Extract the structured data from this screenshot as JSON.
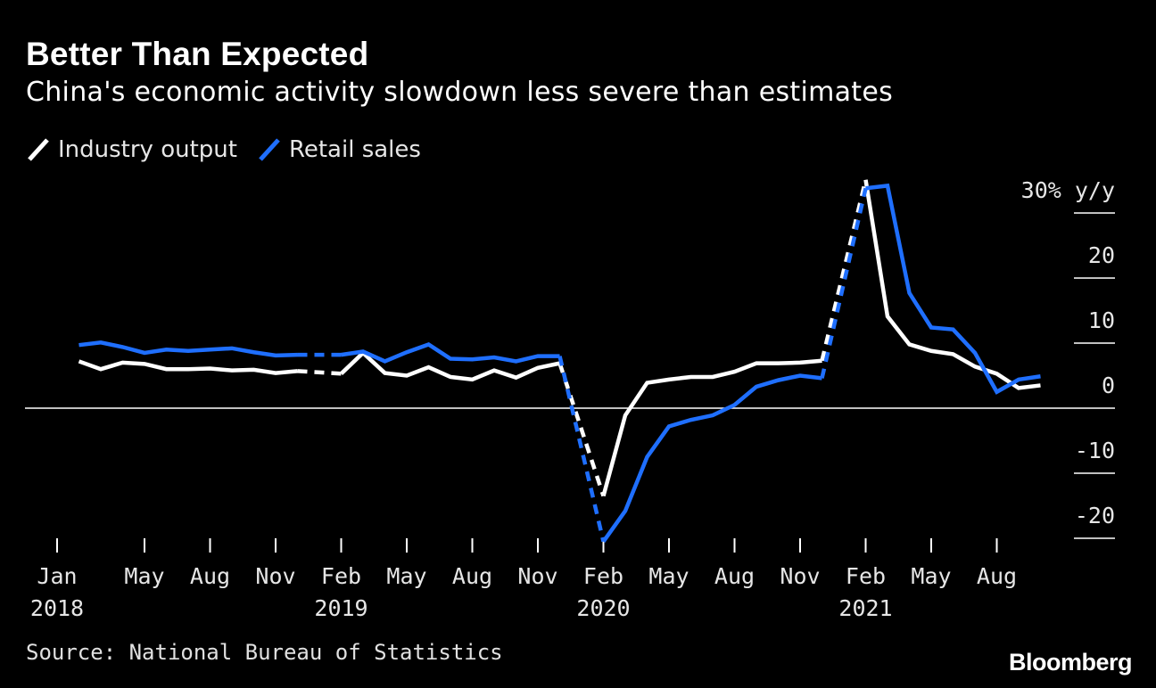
{
  "header": {
    "title": "Better Than Expected",
    "subtitle": "China's economic activity slowdown less severe than estimates"
  },
  "footer": {
    "source": "Source: National Bureau of Statistics",
    "brand": "Bloomberg"
  },
  "colors": {
    "background": "#000000",
    "industry": "#ffffff",
    "retail": "#1f6fff",
    "axis": "#ffffff"
  },
  "chart_data": {
    "type": "line",
    "title": "Better Than Expected",
    "subtitle": "China's economic activity slowdown less severe than estimates",
    "ylabel": "30% y/y",
    "ylim": [
      -20,
      30
    ],
    "y_ticks": [
      {
        "value": 30,
        "label": "30% y/y"
      },
      {
        "value": 20,
        "label": "20"
      },
      {
        "value": 10,
        "label": "10"
      },
      {
        "value": 0,
        "label": "0"
      },
      {
        "value": -10,
        "label": "-10"
      },
      {
        "value": -20,
        "label": "-20"
      }
    ],
    "x_range": [
      "2018-01",
      "2021-11"
    ],
    "x_ticks": [
      {
        "date": "2018-01",
        "label": "Jan",
        "year": "2018"
      },
      {
        "date": "2018-05",
        "label": "May",
        "year": ""
      },
      {
        "date": "2018-08",
        "label": "Aug",
        "year": ""
      },
      {
        "date": "2018-11",
        "label": "Nov",
        "year": ""
      },
      {
        "date": "2019-02",
        "label": "Feb",
        "year": "2019"
      },
      {
        "date": "2019-05",
        "label": "May",
        "year": ""
      },
      {
        "date": "2019-08",
        "label": "Aug",
        "year": ""
      },
      {
        "date": "2019-11",
        "label": "Nov",
        "year": ""
      },
      {
        "date": "2020-02",
        "label": "Feb",
        "year": "2020"
      },
      {
        "date": "2020-05",
        "label": "May",
        "year": ""
      },
      {
        "date": "2020-08",
        "label": "Aug",
        "year": ""
      },
      {
        "date": "2020-11",
        "label": "Nov",
        "year": ""
      },
      {
        "date": "2021-02",
        "label": "Feb",
        "year": "2021"
      },
      {
        "date": "2021-05",
        "label": "May",
        "year": ""
      },
      {
        "date": "2021-08",
        "label": "Aug",
        "year": ""
      }
    ],
    "grid": false,
    "legend_position": "top-left",
    "series": [
      {
        "name": "Industry output",
        "color": "#ffffff",
        "points": [
          {
            "x": "2018-02",
            "y": 7.2
          },
          {
            "x": "2018-03",
            "y": 6.0
          },
          {
            "x": "2018-04",
            "y": 7.0
          },
          {
            "x": "2018-05",
            "y": 6.8
          },
          {
            "x": "2018-06",
            "y": 6.0
          },
          {
            "x": "2018-07",
            "y": 6.0
          },
          {
            "x": "2018-08",
            "y": 6.1
          },
          {
            "x": "2018-09",
            "y": 5.8
          },
          {
            "x": "2018-10",
            "y": 5.9
          },
          {
            "x": "2018-11",
            "y": 5.4
          },
          {
            "x": "2018-12",
            "y": 5.7
          },
          {
            "x": "2019-02",
            "y": 5.3
          },
          {
            "x": "2019-03",
            "y": 8.5
          },
          {
            "x": "2019-04",
            "y": 5.4
          },
          {
            "x": "2019-05",
            "y": 5.0
          },
          {
            "x": "2019-06",
            "y": 6.3
          },
          {
            "x": "2019-07",
            "y": 4.8
          },
          {
            "x": "2019-08",
            "y": 4.4
          },
          {
            "x": "2019-09",
            "y": 5.8
          },
          {
            "x": "2019-10",
            "y": 4.7
          },
          {
            "x": "2019-11",
            "y": 6.2
          },
          {
            "x": "2019-12",
            "y": 6.9
          },
          {
            "x": "2020-02",
            "y": -13.5
          },
          {
            "x": "2020-03",
            "y": -1.1
          },
          {
            "x": "2020-04",
            "y": 3.9
          },
          {
            "x": "2020-05",
            "y": 4.4
          },
          {
            "x": "2020-06",
            "y": 4.8
          },
          {
            "x": "2020-07",
            "y": 4.8
          },
          {
            "x": "2020-08",
            "y": 5.6
          },
          {
            "x": "2020-09",
            "y": 6.9
          },
          {
            "x": "2020-10",
            "y": 6.9
          },
          {
            "x": "2020-11",
            "y": 7.0
          },
          {
            "x": "2020-12",
            "y": 7.3
          },
          {
            "x": "2021-02",
            "y": 35.1
          },
          {
            "x": "2021-03",
            "y": 14.1
          },
          {
            "x": "2021-04",
            "y": 9.8
          },
          {
            "x": "2021-05",
            "y": 8.8
          },
          {
            "x": "2021-06",
            "y": 8.3
          },
          {
            "x": "2021-07",
            "y": 6.4
          },
          {
            "x": "2021-08",
            "y": 5.3
          },
          {
            "x": "2021-09",
            "y": 3.1
          },
          {
            "x": "2021-10",
            "y": 3.5
          }
        ]
      },
      {
        "name": "Retail sales",
        "color": "#1f6fff",
        "points": [
          {
            "x": "2018-02",
            "y": 9.7
          },
          {
            "x": "2018-03",
            "y": 10.1
          },
          {
            "x": "2018-04",
            "y": 9.4
          },
          {
            "x": "2018-05",
            "y": 8.5
          },
          {
            "x": "2018-06",
            "y": 9.0
          },
          {
            "x": "2018-07",
            "y": 8.8
          },
          {
            "x": "2018-08",
            "y": 9.0
          },
          {
            "x": "2018-09",
            "y": 9.2
          },
          {
            "x": "2018-10",
            "y": 8.6
          },
          {
            "x": "2018-11",
            "y": 8.1
          },
          {
            "x": "2018-12",
            "y": 8.2
          },
          {
            "x": "2019-02",
            "y": 8.2
          },
          {
            "x": "2019-03",
            "y": 8.7
          },
          {
            "x": "2019-04",
            "y": 7.2
          },
          {
            "x": "2019-05",
            "y": 8.6
          },
          {
            "x": "2019-06",
            "y": 9.8
          },
          {
            "x": "2019-07",
            "y": 7.6
          },
          {
            "x": "2019-08",
            "y": 7.5
          },
          {
            "x": "2019-09",
            "y": 7.8
          },
          {
            "x": "2019-10",
            "y": 7.2
          },
          {
            "x": "2019-11",
            "y": 8.0
          },
          {
            "x": "2019-12",
            "y": 8.0
          },
          {
            "x": "2020-02",
            "y": -20.5
          },
          {
            "x": "2020-03",
            "y": -15.8
          },
          {
            "x": "2020-04",
            "y": -7.5
          },
          {
            "x": "2020-05",
            "y": -2.8
          },
          {
            "x": "2020-06",
            "y": -1.8
          },
          {
            "x": "2020-07",
            "y": -1.1
          },
          {
            "x": "2020-08",
            "y": 0.5
          },
          {
            "x": "2020-09",
            "y": 3.3
          },
          {
            "x": "2020-10",
            "y": 4.3
          },
          {
            "x": "2020-11",
            "y": 5.0
          },
          {
            "x": "2020-12",
            "y": 4.6
          },
          {
            "x": "2021-02",
            "y": 33.8
          },
          {
            "x": "2021-03",
            "y": 34.2
          },
          {
            "x": "2021-04",
            "y": 17.7
          },
          {
            "x": "2021-05",
            "y": 12.4
          },
          {
            "x": "2021-06",
            "y": 12.1
          },
          {
            "x": "2021-07",
            "y": 8.5
          },
          {
            "x": "2021-08",
            "y": 2.5
          },
          {
            "x": "2021-09",
            "y": 4.4
          },
          {
            "x": "2021-10",
            "y": 4.9
          }
        ]
      }
    ]
  }
}
